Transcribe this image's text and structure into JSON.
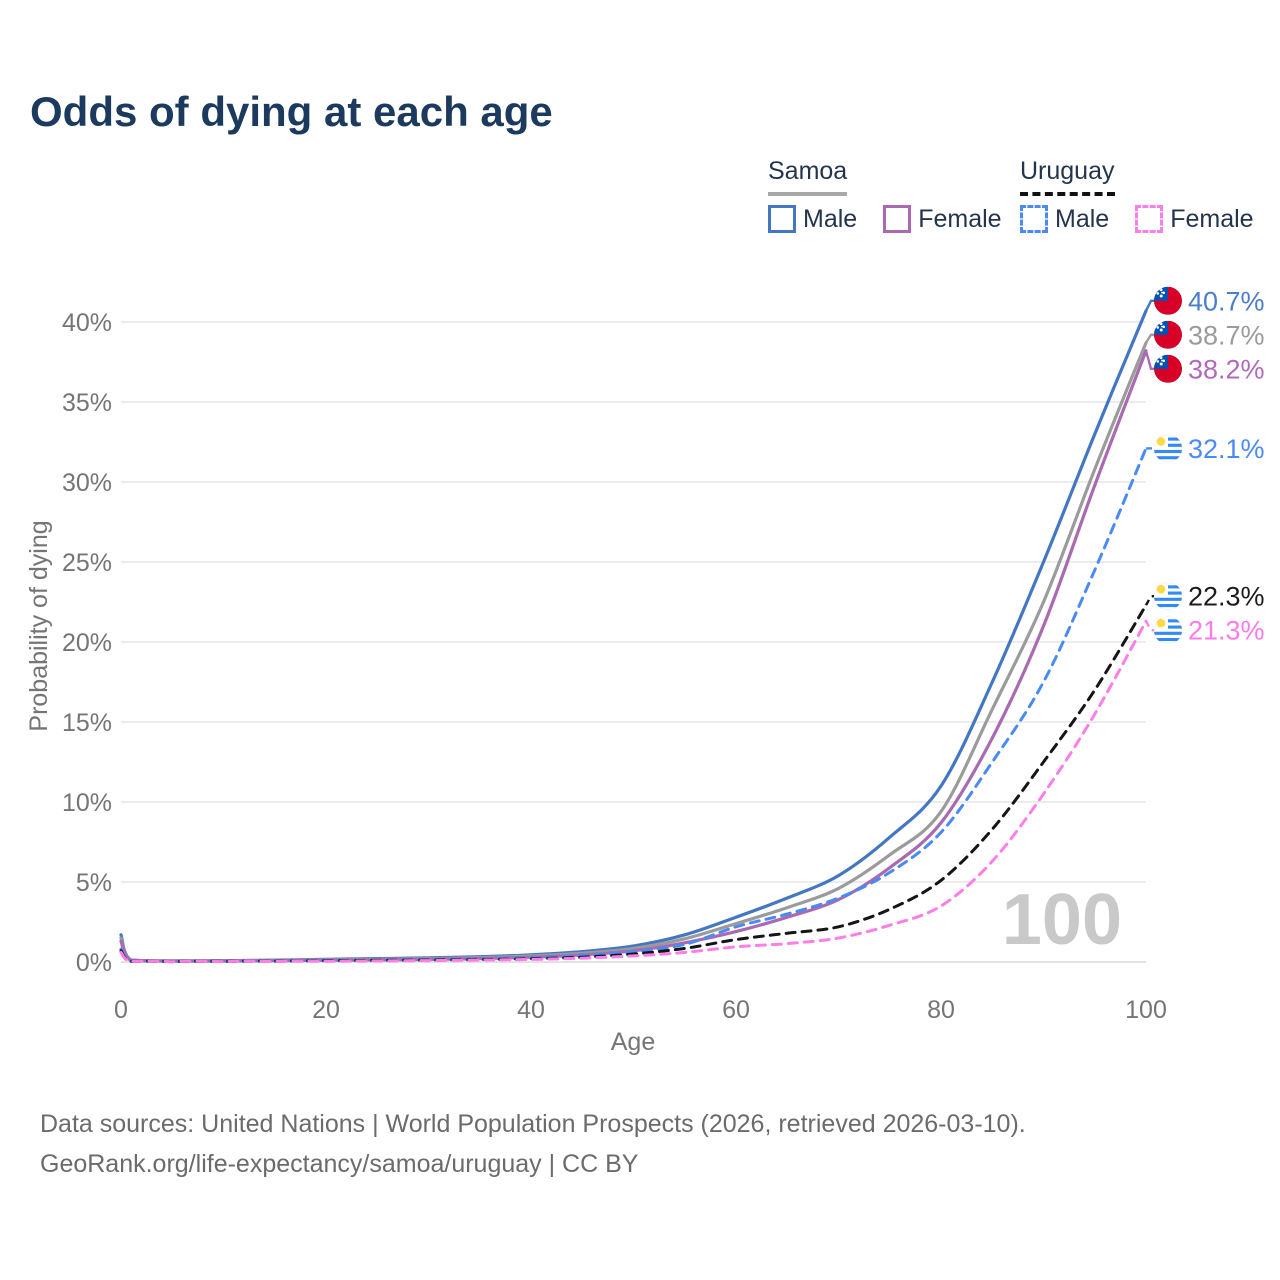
{
  "title": "Odds of dying at each age",
  "legend": {
    "groups": [
      {
        "label": "Samoa",
        "line_style": "solid",
        "underline_color": "#a8a8a8",
        "items": [
          {
            "label": "Male",
            "color": "#4377c2",
            "dashed": false
          },
          {
            "label": "Female",
            "color": "#a96ab2",
            "dashed": false
          }
        ]
      },
      {
        "label": "Uruguay",
        "line_style": "dashed",
        "underline_color": "#111111",
        "items": [
          {
            "label": "Male",
            "color": "#4a8af4",
            "dashed": true
          },
          {
            "label": "Female",
            "color": "#fc7ee8",
            "dashed": true
          }
        ]
      }
    ]
  },
  "watermark": "100",
  "footer": {
    "line1": "Data sources: United Nations | World Population Prospects (2026, retrieved 2026-03-10).",
    "line2": "GeoRank.org/life-expectancy/samoa/uruguay | CC BY"
  },
  "chart_data": {
    "type": "line",
    "title": "Odds of dying at each age",
    "xlabel": "Age",
    "ylabel": "Probability of dying",
    "xlim": [
      0,
      100
    ],
    "ylim": [
      0,
      42
    ],
    "x_ticks": [
      0,
      20,
      40,
      60,
      80,
      100
    ],
    "y_ticks": [
      0,
      5,
      10,
      15,
      20,
      25,
      30,
      35,
      40
    ],
    "y_tick_suffix": "%",
    "grid": true,
    "legend_position": "top-right",
    "ages": [
      0,
      1,
      5,
      10,
      15,
      20,
      25,
      30,
      35,
      40,
      45,
      50,
      55,
      60,
      65,
      70,
      75,
      80,
      85,
      90,
      95,
      100
    ],
    "series": [
      {
        "name": "Samoa Male",
        "country": "Samoa",
        "sex": "Male",
        "color": "#4377c2",
        "label_color": "#4a7ec9",
        "dashed": false,
        "flag": "samoa",
        "end_label": "40.7%",
        "end_value": 40.7,
        "values": [
          1.7,
          0.12,
          0.07,
          0.08,
          0.12,
          0.17,
          0.21,
          0.26,
          0.33,
          0.45,
          0.65,
          1.0,
          1.7,
          2.8,
          4.0,
          5.4,
          7.8,
          11.0,
          17.5,
          25.0,
          33.0,
          40.7
        ]
      },
      {
        "name": "Samoa",
        "country": "Samoa",
        "sex": "Both",
        "color": "#9b9b9b",
        "label_color": "#9b9b9b",
        "dashed": false,
        "flag": "samoa",
        "end_label": "38.7%",
        "end_value": 38.7,
        "values": [
          1.5,
          0.11,
          0.06,
          0.07,
          0.1,
          0.14,
          0.17,
          0.21,
          0.27,
          0.38,
          0.55,
          0.85,
          1.45,
          2.4,
          3.4,
          4.6,
          6.7,
          9.4,
          15.8,
          22.5,
          30.8,
          38.7
        ]
      },
      {
        "name": "Samoa Female",
        "country": "Samoa",
        "sex": "Female",
        "color": "#a96ab2",
        "label_color": "#b269bc",
        "dashed": false,
        "flag": "samoa",
        "end_label": "38.2%",
        "end_value": 38.2,
        "values": [
          1.3,
          0.1,
          0.05,
          0.06,
          0.08,
          0.11,
          0.13,
          0.16,
          0.21,
          0.3,
          0.45,
          0.7,
          1.2,
          1.9,
          2.8,
          3.9,
          5.9,
          8.7,
          14.0,
          21.0,
          29.8,
          38.2
        ]
      },
      {
        "name": "Uruguay Male",
        "country": "Uruguay",
        "sex": "Male",
        "color": "#4a8af4",
        "label_color": "#4a8af4",
        "dashed": true,
        "flag": "uruguay",
        "end_label": "32.1%",
        "end_value": 32.1,
        "values": [
          0.8,
          0.05,
          0.03,
          0.03,
          0.06,
          0.1,
          0.12,
          0.14,
          0.18,
          0.25,
          0.4,
          0.65,
          1.1,
          2.2,
          3.0,
          4.0,
          5.6,
          8.1,
          12.5,
          17.5,
          24.5,
          32.1
        ]
      },
      {
        "name": "Uruguay",
        "country": "Uruguay",
        "sex": "Both",
        "color": "#151515",
        "label_color": "#1c1c1c",
        "dashed": true,
        "flag": "uruguay",
        "end_label": "22.3%",
        "end_value": 22.3,
        "values": [
          0.7,
          0.04,
          0.02,
          0.03,
          0.05,
          0.08,
          0.1,
          0.12,
          0.15,
          0.2,
          0.3,
          0.5,
          0.85,
          1.4,
          1.8,
          2.2,
          3.3,
          5.1,
          8.3,
          12.5,
          17.0,
          22.3
        ]
      },
      {
        "name": "Uruguay Female",
        "country": "Uruguay",
        "sex": "Female",
        "color": "#fc7ee8",
        "label_color": "#fb7ce8",
        "dashed": true,
        "flag": "uruguay",
        "end_label": "21.3%",
        "end_value": 21.3,
        "values": [
          0.6,
          0.04,
          0.02,
          0.02,
          0.03,
          0.05,
          0.07,
          0.09,
          0.12,
          0.16,
          0.24,
          0.38,
          0.6,
          0.95,
          1.15,
          1.5,
          2.3,
          3.5,
          6.3,
          10.5,
          15.5,
          21.3
        ]
      }
    ],
    "flag_colors": {
      "samoa": {
        "field": "#d80027",
        "canton": "#0052b4",
        "stars": "#ffffff"
      },
      "uruguay": {
        "field": "#ffffff",
        "stripes": "#338af3",
        "sun": "#ffda44"
      }
    }
  }
}
